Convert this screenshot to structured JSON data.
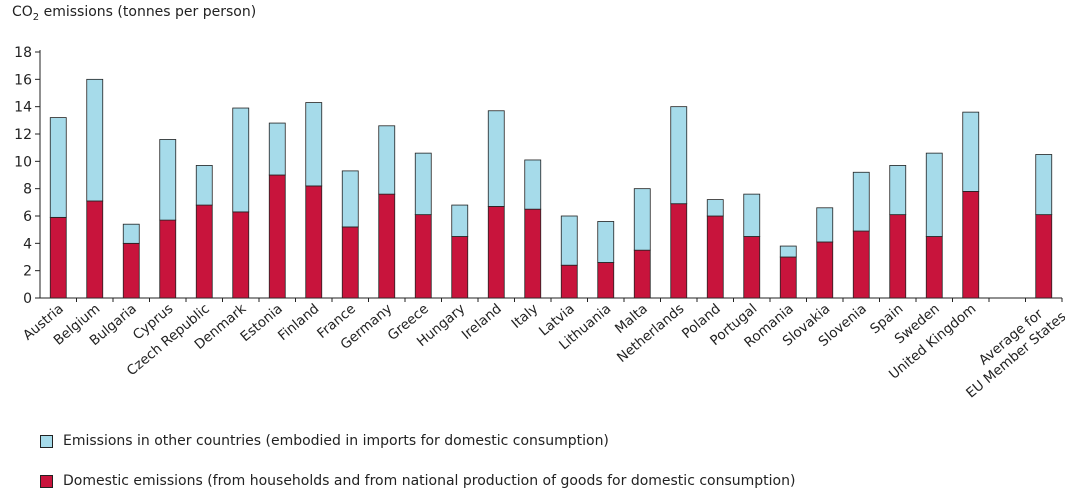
{
  "chart_data": {
    "type": "bar",
    "stacked": true,
    "ylabel_prefix": "CO",
    "ylabel_sub": "2",
    "ylabel_suffix": " emissions (tonnes per person)",
    "ylim": [
      0,
      18
    ],
    "yticks": [
      0,
      2,
      4,
      6,
      8,
      10,
      12,
      14,
      16,
      18
    ],
    "grid": false,
    "categories": [
      "Austria",
      "Belgium",
      "Bulgaria",
      "Cyprus",
      "Czech Republic",
      "Denmark",
      "Estonia",
      "Finland",
      "France",
      "Germany",
      "Greece",
      "Hungary",
      "Ireland",
      "Italy",
      "Latvia",
      "Lithuania",
      "Malta",
      "Netherlands",
      "Poland",
      "Portugal",
      "Romania",
      "Slovakia",
      "Slovenia",
      "Spain",
      "Sweden",
      "United Kingdom",
      "",
      "Average for EU Member States"
    ],
    "series": [
      {
        "name": "Domestic emissions (from households and from national production of goods for domestic consumption)",
        "color": "#c8143c",
        "values": [
          5.9,
          7.1,
          4.0,
          5.7,
          6.8,
          6.3,
          9.0,
          8.2,
          5.2,
          7.6,
          6.1,
          4.5,
          6.7,
          6.5,
          2.4,
          2.6,
          3.5,
          6.9,
          6.0,
          4.5,
          3.0,
          4.1,
          4.9,
          6.1,
          4.5,
          7.8,
          null,
          6.1
        ]
      },
      {
        "name": "Emissions in other countries (embodied in imports for domestic consumption)",
        "color": "#a6dbea",
        "values": [
          7.3,
          8.9,
          1.4,
          5.9,
          2.9,
          7.6,
          3.8,
          6.1,
          4.1,
          5.0,
          4.5,
          2.3,
          7.0,
          3.6,
          3.6,
          3.0,
          4.5,
          7.1,
          1.2,
          3.1,
          0.8,
          2.5,
          4.3,
          3.6,
          6.1,
          5.8,
          null,
          4.4
        ]
      }
    ],
    "legend_position": "bottom-left"
  }
}
